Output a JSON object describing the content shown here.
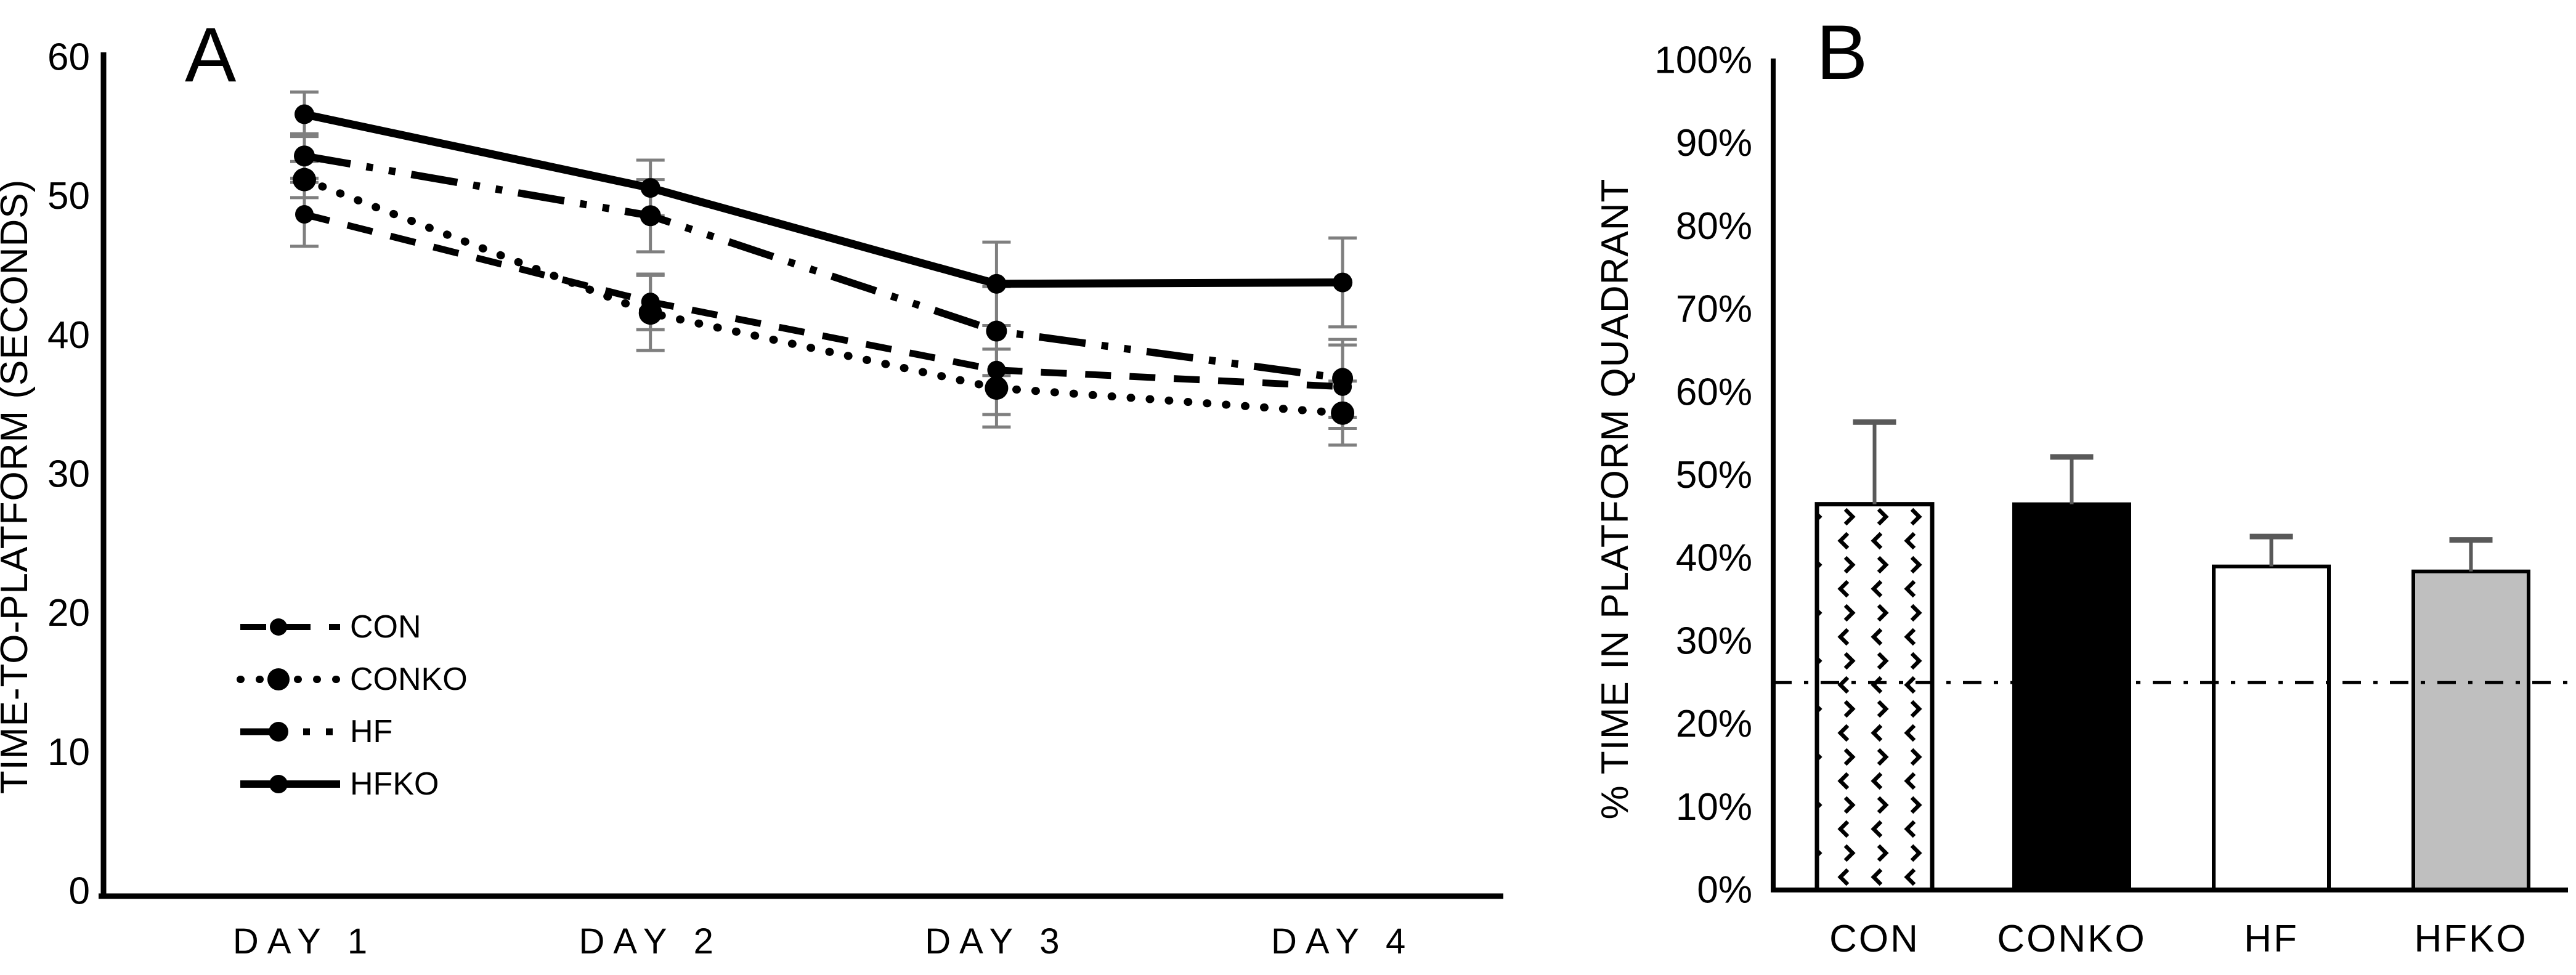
{
  "figure": {
    "background": "#ffffff",
    "panel_labels": [
      "A",
      "B"
    ]
  },
  "colors": {
    "series_black": "#000000",
    "error_bar_gray_line_panel": "#7f7f7f",
    "error_bar_gray_bar_panel": "#595959",
    "legend_text_gray": "#595959",
    "bar_gray_fill": "#bfbfbf",
    "axis_black": "#000000"
  },
  "chart_data": [
    {
      "type": "line",
      "panel_label": "A",
      "ylabel": "TIME-TO-PLATFORM (SECONDS)",
      "ylim": [
        0,
        60
      ],
      "yticks": [
        0,
        10,
        20,
        30,
        40,
        50,
        60
      ],
      "x": [
        "DAY 1",
        "DAY 2",
        "DAY 3",
        "DAY 4"
      ],
      "grid": false,
      "legend_position": "lower-left",
      "series": [
        {
          "name": "CON",
          "line_style": "dashed",
          "marker": "filled-circle",
          "values": [
            48.7,
            42.4,
            37.5,
            36.3
          ],
          "errors": [
            2.3,
            2.0,
            3.2,
            3.0
          ]
        },
        {
          "name": "CONKO",
          "line_style": "dotted",
          "marker": "filled-circle",
          "values": [
            51.2,
            41.6,
            36.2,
            34.4
          ],
          "errors": [
            1.3,
            2.7,
            2.8,
            2.3
          ]
        },
        {
          "name": "HF",
          "line_style": "dash-dot-dot",
          "marker": "filled-circle",
          "values": [
            52.9,
            48.6,
            40.3,
            36.9
          ],
          "errors": [
            1.6,
            2.6,
            3.2,
            2.8
          ]
        },
        {
          "name": "HFKO",
          "line_style": "solid",
          "marker": "filled-circle",
          "values": [
            55.9,
            50.6,
            43.7,
            43.8
          ],
          "errors": [
            1.6,
            2.0,
            3.0,
            3.2
          ]
        }
      ]
    },
    {
      "type": "bar",
      "panel_label": "B",
      "ylabel": "% TIME IN PLATFORM QUADRANT",
      "ylim": [
        0,
        100
      ],
      "ytick_labels": [
        "0%",
        "10%",
        "20%",
        "30%",
        "40%",
        "50%",
        "60%",
        "70%",
        "80%",
        "90%",
        "100%"
      ],
      "categories": [
        "CON",
        "CONKO",
        "HF",
        "HFKO"
      ],
      "values": [
        46.5,
        46.5,
        39.0,
        38.4
      ],
      "errors_up": [
        9.9,
        5.7,
        3.6,
        3.8
      ],
      "bar_fills": [
        "dotted-diamond-pattern",
        "solid-black",
        "white",
        "light-gray"
      ],
      "reference_line": {
        "value": 25,
        "style": "dash-dot"
      },
      "grid": false
    }
  ]
}
